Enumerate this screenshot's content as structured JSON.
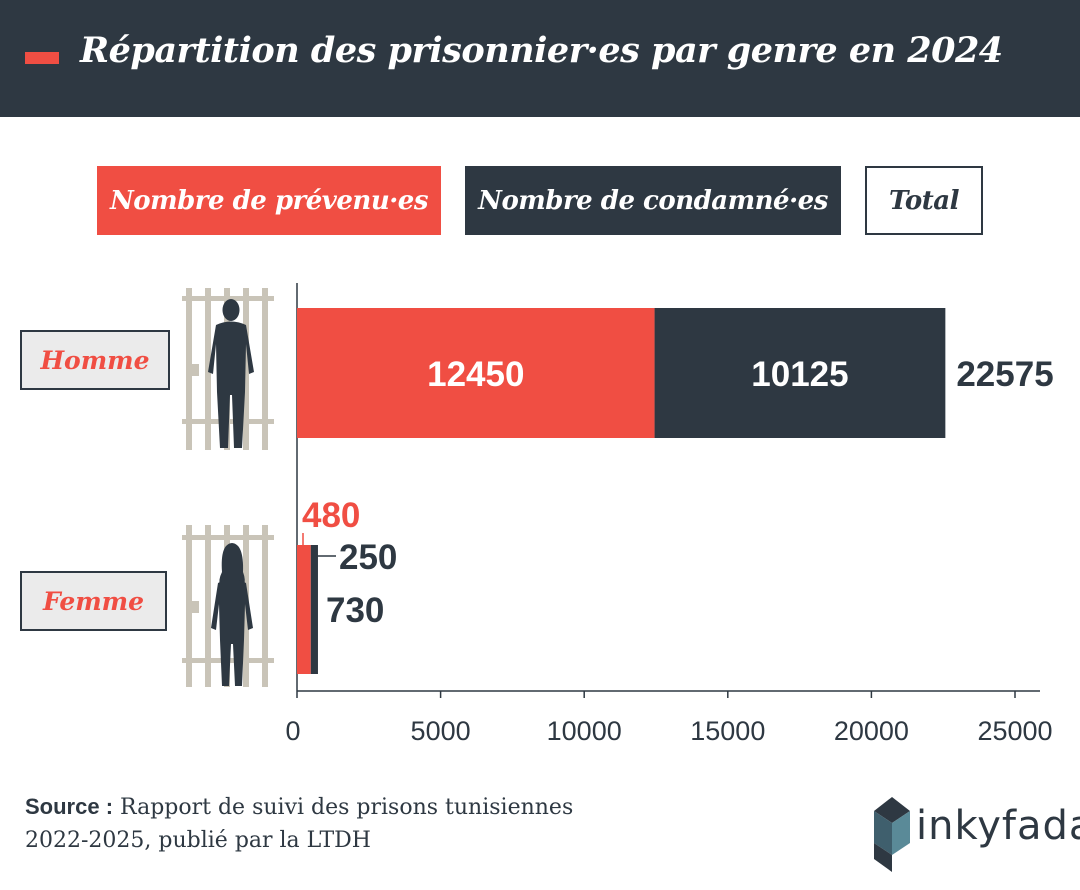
{
  "header": {
    "title": "Répartition des prisonnier·es par genre en 2024"
  },
  "legend": {
    "prevenus": "Nombre de prévenu·es",
    "condamnes": "Nombre de condamné·es",
    "total": "Total"
  },
  "colors": {
    "prevenus": "#f04e43",
    "condamnes": "#2e3842",
    "header_bg": "#2e3842",
    "bars_gray": "#c9c4b8"
  },
  "icons": [
    "prison-bars-icon",
    "man-silhouette-icon",
    "woman-silhouette-icon",
    "inkyfada-logo-icon"
  ],
  "source": {
    "label": "Source :",
    "text": "Rapport de suivi des prisons tunisiennes 2022-2025, publié par la LTDH"
  },
  "brand": {
    "name": "inkyfada"
  },
  "chart_data": {
    "type": "bar",
    "orientation": "horizontal",
    "stacked": true,
    "categories": [
      "Homme",
      "Femme"
    ],
    "series": [
      {
        "name": "Nombre de prévenu·es",
        "values": [
          12450,
          480
        ],
        "labels": [
          "12450",
          "480"
        ]
      },
      {
        "name": "Nombre de condamné·es",
        "values": [
          10125,
          250
        ],
        "labels": [
          "10125",
          "250"
        ]
      }
    ],
    "totals": [
      22575,
      730
    ],
    "total_labels": [
      "22575",
      "730"
    ],
    "xlim": [
      0,
      25000
    ],
    "xticks": [
      0,
      5000,
      10000,
      15000,
      20000,
      25000
    ],
    "xtick_labels": [
      "0",
      "5000",
      "10000",
      "15000",
      "20000",
      "25000"
    ],
    "legend_position": "top",
    "grid": false
  }
}
